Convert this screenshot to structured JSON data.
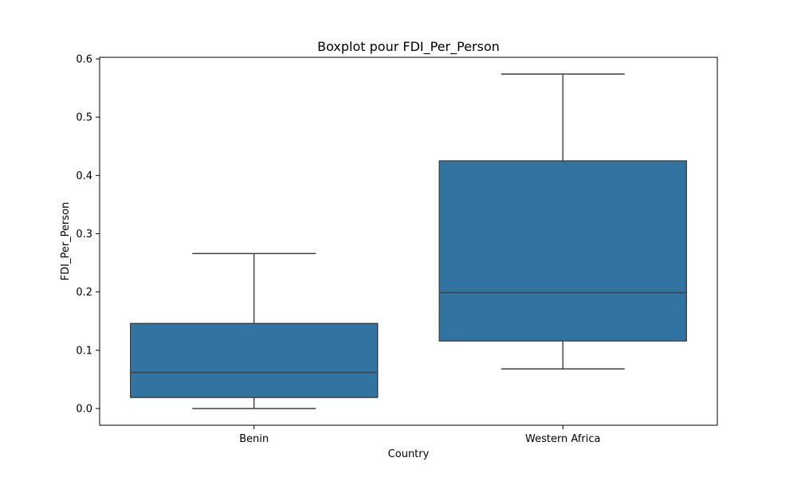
{
  "chart_data": {
    "type": "box",
    "title": "Boxplot pour FDI_Per_Person",
    "xlabel": "Country",
    "ylabel": "FDI_Per_Person",
    "categories": [
      "Benin",
      "Western Africa"
    ],
    "boxes": [
      {
        "category": "Benin",
        "whisker_low": 0.0,
        "q1": 0.019,
        "median": 0.062,
        "q3": 0.146,
        "whisker_high": 0.266
      },
      {
        "category": "Western Africa",
        "whisker_low": 0.068,
        "q1": 0.116,
        "median": 0.199,
        "q3": 0.425,
        "whisker_high": 0.574
      }
    ],
    "ylim": [
      -0.0287,
      0.6027
    ],
    "yticks": [
      0.0,
      0.1,
      0.2,
      0.3,
      0.4,
      0.5,
      0.6
    ],
    "ytick_labels": [
      "0.0",
      "0.1",
      "0.2",
      "0.3",
      "0.4",
      "0.5",
      "0.6"
    ],
    "grid": false,
    "box_color": "#3274a1",
    "line_color": "#3f3f3f"
  }
}
